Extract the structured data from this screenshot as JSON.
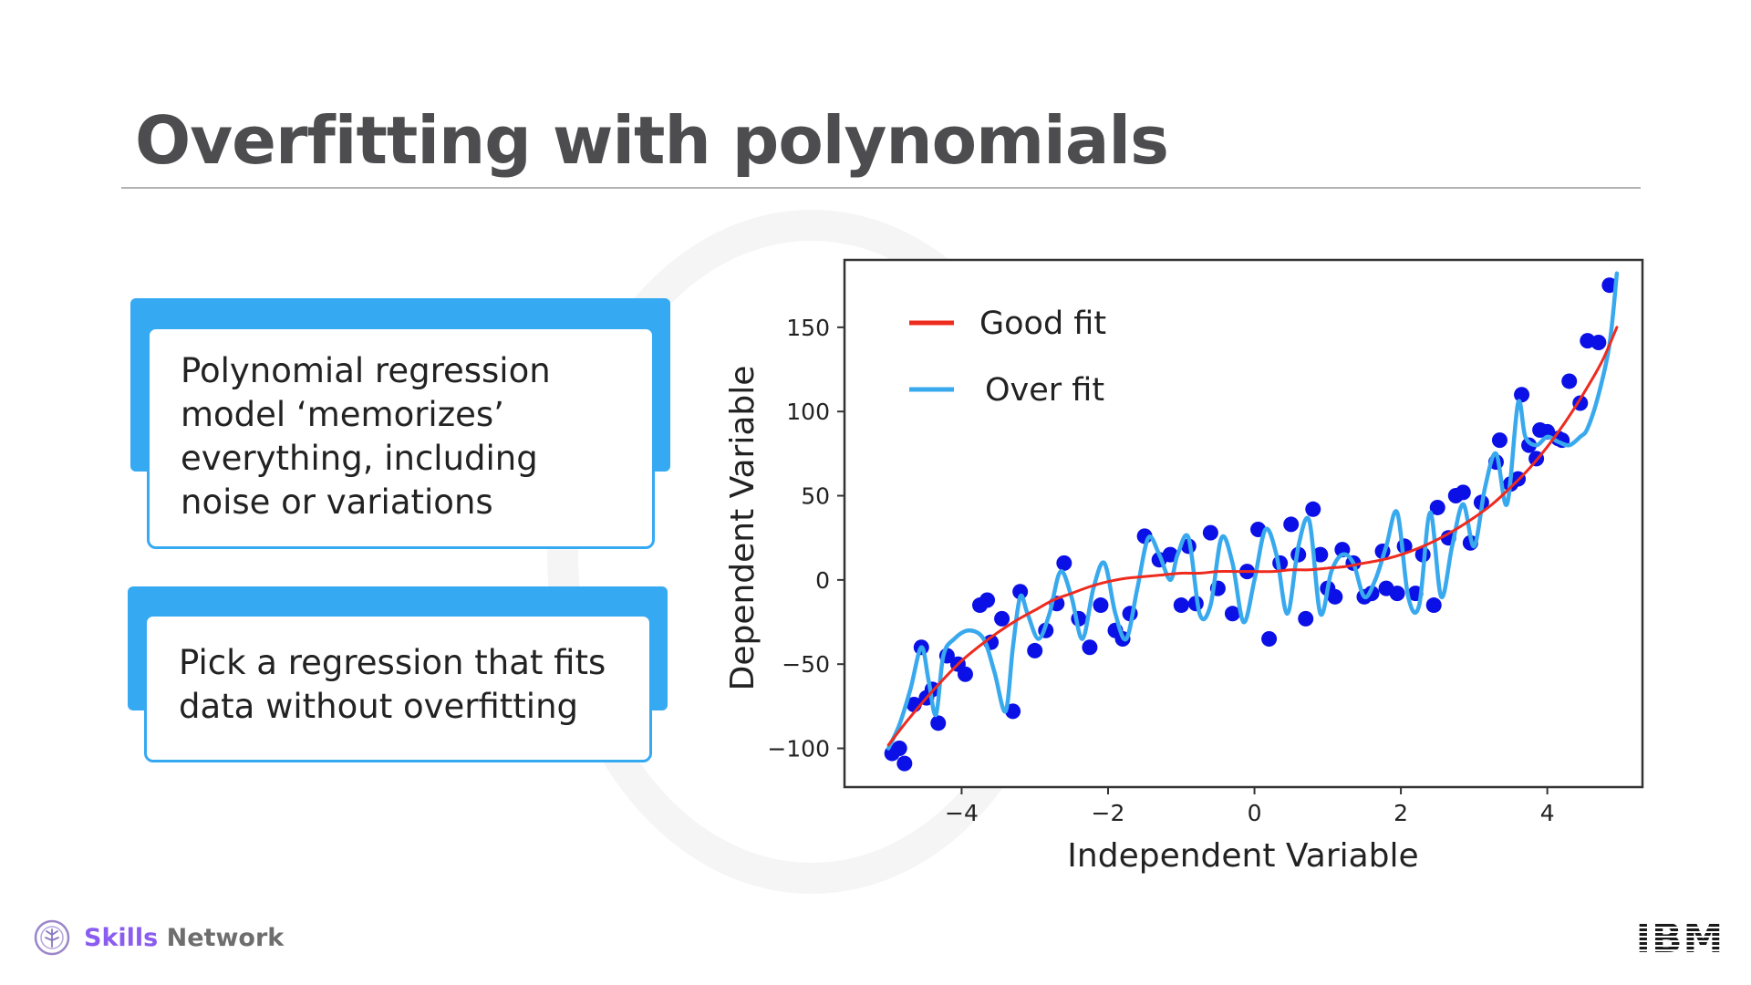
{
  "slide": {
    "title": "Overfitting with polynomials",
    "cards": [
      {
        "text": "Polynomial regression model ‘memorizes’ everything, including noise or variations"
      },
      {
        "text": "Pick a regression that fits data without overfitting"
      }
    ],
    "footer": {
      "brand_strong": "Skills",
      "brand_rest": " Network",
      "ibm_logo": "IBM"
    }
  },
  "colors": {
    "accent": "#36a9f3",
    "points": "#0a10e6",
    "good_fit": "#ee2b1f",
    "over_fit": "#39a9ee"
  },
  "chart_data": {
    "type": "scatter",
    "title": "",
    "xlabel": "Independent Variable",
    "ylabel": "Dependent Variable",
    "xlim": [
      -5.6,
      5.3
    ],
    "ylim": [
      -123,
      190
    ],
    "xticks": [
      -4,
      -2,
      0,
      2,
      4
    ],
    "xtick_labels": [
      "−4",
      "−2",
      "0",
      "2",
      "4"
    ],
    "yticks": [
      -100,
      -50,
      0,
      50,
      100,
      150
    ],
    "ytick_labels": [
      "−100",
      "−50",
      "0",
      "50",
      "100",
      "150"
    ],
    "grid": false,
    "legend": {
      "position": "top-left",
      "entries": [
        "Good fit",
        "Over fit"
      ]
    },
    "points": [
      [
        -4.95,
        -103
      ],
      [
        -4.85,
        -100
      ],
      [
        -4.78,
        -109
      ],
      [
        -4.65,
        -74
      ],
      [
        -4.55,
        -40
      ],
      [
        -4.48,
        -70
      ],
      [
        -4.4,
        -65
      ],
      [
        -4.32,
        -85
      ],
      [
        -4.2,
        -45
      ],
      [
        -4.05,
        -50
      ],
      [
        -3.95,
        -56
      ],
      [
        -3.75,
        -15
      ],
      [
        -3.65,
        -12
      ],
      [
        -3.6,
        -37
      ],
      [
        -3.45,
        -23
      ],
      [
        -3.3,
        -78
      ],
      [
        -3.2,
        -7
      ],
      [
        -3.0,
        -42
      ],
      [
        -2.85,
        -30
      ],
      [
        -2.7,
        -14
      ],
      [
        -2.6,
        10
      ],
      [
        -2.4,
        -23
      ],
      [
        -2.25,
        -40
      ],
      [
        -2.1,
        -15
      ],
      [
        -1.9,
        -30
      ],
      [
        -1.8,
        -35
      ],
      [
        -1.7,
        -20
      ],
      [
        -1.5,
        26
      ],
      [
        -1.3,
        12
      ],
      [
        -1.15,
        15
      ],
      [
        -1.0,
        -15
      ],
      [
        -0.9,
        20
      ],
      [
        -0.8,
        -14
      ],
      [
        -0.6,
        28
      ],
      [
        -0.5,
        -5
      ],
      [
        -0.3,
        -20
      ],
      [
        -0.1,
        5
      ],
      [
        0.05,
        30
      ],
      [
        0.2,
        -35
      ],
      [
        0.35,
        10
      ],
      [
        0.5,
        33
      ],
      [
        0.6,
        15
      ],
      [
        0.7,
        -23
      ],
      [
        0.8,
        42
      ],
      [
        0.9,
        15
      ],
      [
        1.0,
        -5
      ],
      [
        1.1,
        -10
      ],
      [
        1.2,
        18
      ],
      [
        1.35,
        10
      ],
      [
        1.5,
        -10
      ],
      [
        1.6,
        -8
      ],
      [
        1.75,
        17
      ],
      [
        1.8,
        -5
      ],
      [
        1.95,
        -8
      ],
      [
        2.05,
        20
      ],
      [
        2.2,
        -8
      ],
      [
        2.3,
        15
      ],
      [
        2.45,
        -15
      ],
      [
        2.5,
        43
      ],
      [
        2.65,
        25
      ],
      [
        2.75,
        50
      ],
      [
        2.85,
        52
      ],
      [
        2.95,
        22
      ],
      [
        3.1,
        46
      ],
      [
        3.3,
        70
      ],
      [
        3.35,
        83
      ],
      [
        3.5,
        57
      ],
      [
        3.6,
        60
      ],
      [
        3.65,
        110
      ],
      [
        3.75,
        80
      ],
      [
        3.85,
        72
      ],
      [
        3.9,
        89
      ],
      [
        4.0,
        88
      ],
      [
        4.15,
        84
      ],
      [
        4.2,
        83
      ],
      [
        4.3,
        118
      ],
      [
        4.45,
        105
      ],
      [
        4.55,
        142
      ],
      [
        4.7,
        141
      ],
      [
        4.85,
        175
      ]
    ],
    "series": [
      {
        "name": "Good fit",
        "x": [
          -5.0,
          -4.75,
          -4.5,
          -4.25,
          -4.0,
          -3.75,
          -3.5,
          -3.25,
          -3.0,
          -2.75,
          -2.5,
          -2.25,
          -2.0,
          -1.75,
          -1.5,
          -1.25,
          -1.0,
          -0.75,
          -0.5,
          -0.25,
          0.0,
          0.25,
          0.5,
          0.75,
          1.0,
          1.25,
          1.5,
          1.75,
          2.0,
          2.25,
          2.5,
          2.75,
          3.0,
          3.25,
          3.5,
          3.75,
          4.0,
          4.25,
          4.5,
          4.75,
          4.95
        ],
        "y": [
          -98,
          -84,
          -71,
          -59,
          -48,
          -39,
          -31,
          -24,
          -18,
          -12,
          -8,
          -4,
          -1,
          1,
          2,
          3,
          4,
          4,
          5,
          5,
          5,
          5,
          6,
          6,
          7,
          8,
          10,
          12,
          15,
          19,
          24,
          30,
          37,
          45,
          55,
          66,
          79,
          94,
          111,
          130,
          150
        ]
      },
      {
        "name": "Over fit",
        "x": [
          -5.0,
          -4.85,
          -4.7,
          -4.55,
          -4.45,
          -4.35,
          -4.25,
          -4.1,
          -3.9,
          -3.7,
          -3.55,
          -3.4,
          -3.3,
          -3.2,
          -3.1,
          -2.95,
          -2.8,
          -2.65,
          -2.5,
          -2.35,
          -2.2,
          -2.05,
          -1.9,
          -1.75,
          -1.6,
          -1.45,
          -1.3,
          -1.15,
          -1.05,
          -0.9,
          -0.75,
          -0.6,
          -0.45,
          -0.3,
          -0.15,
          0.0,
          0.15,
          0.3,
          0.45,
          0.6,
          0.75,
          0.9,
          1.05,
          1.2,
          1.35,
          1.5,
          1.65,
          1.8,
          1.95,
          2.1,
          2.25,
          2.4,
          2.55,
          2.7,
          2.85,
          3.0,
          3.15,
          3.3,
          3.45,
          3.6,
          3.7,
          3.85,
          4.0,
          4.15,
          4.3,
          4.45,
          4.55,
          4.7,
          4.85,
          4.95
        ],
        "y": [
          -100,
          -86,
          -65,
          -40,
          -60,
          -80,
          -45,
          -35,
          -30,
          -35,
          -55,
          -78,
          -40,
          -10,
          -20,
          -35,
          -20,
          5,
          -10,
          -35,
          -5,
          10,
          -20,
          -35,
          -5,
          25,
          15,
          0,
          15,
          25,
          -20,
          -15,
          25,
          10,
          -25,
          0,
          30,
          15,
          -20,
          20,
          35,
          -20,
          5,
          15,
          10,
          -10,
          0,
          20,
          40,
          -10,
          -15,
          40,
          -10,
          20,
          45,
          20,
          55,
          75,
          45,
          105,
          85,
          80,
          85,
          82,
          80,
          85,
          90,
          110,
          140,
          182
        ]
      }
    ]
  }
}
